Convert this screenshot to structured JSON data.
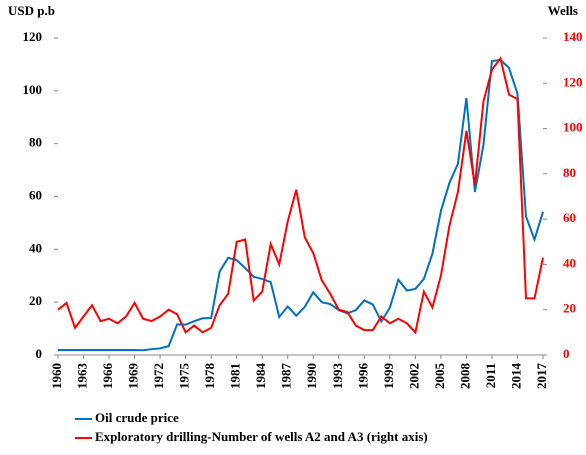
{
  "chart_data": {
    "type": "line",
    "y_label": "USD p.b",
    "y2_label": "Wells",
    "x": [
      1960,
      1961,
      1962,
      1963,
      1964,
      1965,
      1966,
      1967,
      1968,
      1969,
      1970,
      1971,
      1972,
      1973,
      1974,
      1975,
      1976,
      1977,
      1978,
      1979,
      1980,
      1981,
      1982,
      1983,
      1984,
      1985,
      1986,
      1987,
      1988,
      1989,
      1990,
      1991,
      1992,
      1993,
      1994,
      1995,
      1996,
      1997,
      1998,
      1999,
      2000,
      2001,
      2002,
      2003,
      2004,
      2005,
      2006,
      2007,
      2008,
      2009,
      2010,
      2011,
      2012,
      2013,
      2014,
      2015,
      2016,
      2017
    ],
    "xlim": [
      1960,
      2017
    ],
    "xticks": [
      1960,
      1963,
      1966,
      1969,
      1972,
      1975,
      1978,
      1981,
      1984,
      1987,
      1990,
      1993,
      1996,
      1999,
      2002,
      2005,
      2008,
      2011,
      2014,
      2017
    ],
    "ylim": [
      0,
      120
    ],
    "yticks": [
      0,
      20,
      40,
      60,
      80,
      100,
      120
    ],
    "y2lim": [
      0,
      140
    ],
    "y2ticks": [
      0,
      20,
      40,
      60,
      80,
      100,
      120,
      140
    ],
    "series": [
      {
        "name": "Oil crude price",
        "color": "#0070c0",
        "values": [
          1.9,
          1.9,
          1.9,
          1.9,
          1.9,
          1.9,
          1.9,
          1.9,
          1.9,
          1.9,
          1.8,
          2.2,
          2.5,
          3.3,
          11.6,
          11.5,
          12.8,
          13.9,
          14,
          31.6,
          36.8,
          35.9,
          32.9,
          29.6,
          28.8,
          27.6,
          14.4,
          18.4,
          14.9,
          18.2,
          23.7,
          20,
          19.3,
          17,
          15.8,
          17,
          20.7,
          19.1,
          12.7,
          17.9,
          28.5,
          24.4,
          25,
          28.8,
          38.3,
          54.5,
          65.1,
          72.4,
          97.3,
          61.7,
          79.5,
          111.3,
          111.7,
          108.7,
          98.9,
          52.4,
          43.7,
          54.2
        ]
      },
      {
        "name": "Exploratory drilling-Number of wells A2  and A3 (right axis)",
        "color": "#ff0000",
        "axis": "y2",
        "values": [
          20,
          23,
          12,
          17,
          22,
          15,
          16,
          14,
          17,
          23,
          16,
          15,
          17,
          20,
          18,
          10,
          13,
          10,
          12,
          22,
          27,
          50,
          51,
          24,
          28,
          49,
          40,
          59,
          73,
          52,
          45,
          33,
          27,
          20,
          19,
          13,
          11,
          11,
          17,
          14,
          16,
          14,
          10,
          28,
          21,
          35,
          57,
          72,
          99,
          75,
          112,
          126,
          131,
          115,
          113,
          25,
          25,
          43
        ]
      }
    ]
  }
}
